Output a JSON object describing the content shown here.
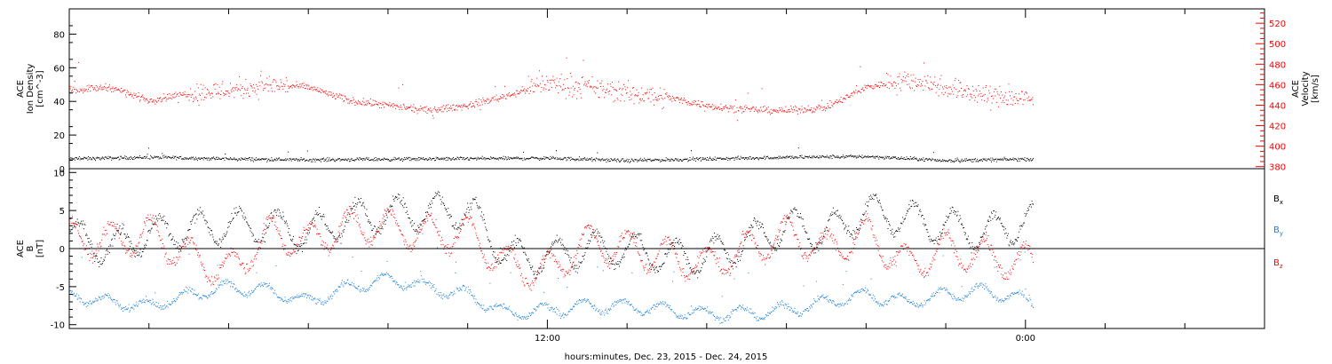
{
  "chart_data": [
    {
      "type": "scatter",
      "name": "density-velocity-panel",
      "ylabel_left": [
        "ACE",
        "Ion Density",
        "[cm^-3]"
      ],
      "ylabel_right": [
        "ACE",
        "Velocity",
        "[km/s]"
      ],
      "ylim_left": [
        0,
        95
      ],
      "ylim_right": [
        378,
        534
      ],
      "yticks_left": [
        0,
        20,
        40,
        60,
        80
      ],
      "yticks_right": [
        380,
        400,
        420,
        440,
        460,
        480,
        500,
        520
      ],
      "x_range_hours": [
        0,
        30
      ],
      "data_end_hours": 24.2,
      "series": [
        {
          "name": "Ion Density",
          "color": "#000000",
          "axis": "left",
          "profile": [
            [
              0,
              6
            ],
            [
              2,
              7
            ],
            [
              4,
              6
            ],
            [
              6,
              5.5
            ],
            [
              9,
              6
            ],
            [
              12,
              6.5
            ],
            [
              14,
              5
            ],
            [
              16,
              6
            ],
            [
              18,
              7
            ],
            [
              20,
              7.5
            ],
            [
              22,
              5
            ],
            [
              24.2,
              6
            ]
          ]
        },
        {
          "name": "Velocity",
          "color": "#ff0000",
          "axis": "right",
          "profile": [
            [
              0,
              455
            ],
            [
              1,
              458
            ],
            [
              2,
              445
            ],
            [
              3,
              452
            ],
            [
              4,
              455
            ],
            [
              5,
              460
            ],
            [
              6,
              458
            ],
            [
              7,
              445
            ],
            [
              8,
              440
            ],
            [
              9,
              435
            ],
            [
              10,
              440
            ],
            [
              11,
              450
            ],
            [
              12,
              462
            ],
            [
              13,
              458
            ],
            [
              14,
              452
            ],
            [
              15,
              448
            ],
            [
              16,
              440
            ],
            [
              17,
              436
            ],
            [
              18,
              435
            ],
            [
              19,
              438
            ],
            [
              20,
              458
            ],
            [
              21,
              465
            ],
            [
              22,
              458
            ],
            [
              23,
              450
            ],
            [
              24.2,
              445
            ]
          ]
        }
      ]
    },
    {
      "type": "scatter",
      "name": "magnetic-field-panel",
      "ylabel_left": [
        "ACE",
        "B",
        "[nT]"
      ],
      "ylim": [
        -10.5,
        10.5
      ],
      "yticks": [
        -10,
        -5,
        0,
        5,
        10
      ],
      "x_range_hours": [
        0,
        30
      ],
      "data_end_hours": 24.2,
      "series": [
        {
          "name": "Bx",
          "color": "#000000",
          "profile": [
            [
              0,
              2
            ],
            [
              1,
              0
            ],
            [
              2,
              2
            ],
            [
              3,
              2.5
            ],
            [
              4,
              3
            ],
            [
              5,
              3
            ],
            [
              6,
              2
            ],
            [
              7,
              4
            ],
            [
              8,
              4.5
            ],
            [
              9,
              5
            ],
            [
              10,
              5
            ],
            [
              11,
              -1
            ],
            [
              12,
              -1
            ],
            [
              13,
              0
            ],
            [
              14,
              0
            ],
            [
              15,
              -1
            ],
            [
              16,
              -1
            ],
            [
              17,
              1
            ],
            [
              18,
              3
            ],
            [
              19,
              2
            ],
            [
              20,
              5
            ],
            [
              21,
              4
            ],
            [
              22,
              3
            ],
            [
              23,
              2
            ],
            [
              24.2,
              4
            ]
          ]
        },
        {
          "name": "By",
          "color": "#1a7fd6",
          "profile": [
            [
              0,
              -6
            ],
            [
              1,
              -7
            ],
            [
              2,
              -7.5
            ],
            [
              3,
              -6
            ],
            [
              4,
              -5
            ],
            [
              5,
              -5.5
            ],
            [
              6,
              -7
            ],
            [
              7,
              -5
            ],
            [
              8,
              -4
            ],
            [
              9,
              -5
            ],
            [
              10,
              -6
            ],
            [
              11,
              -8.5
            ],
            [
              12,
              -8
            ],
            [
              13,
              -7.5
            ],
            [
              14,
              -7.5
            ],
            [
              15,
              -8
            ],
            [
              16,
              -8.5
            ],
            [
              17,
              -8.5
            ],
            [
              18,
              -8
            ],
            [
              19,
              -7
            ],
            [
              20,
              -6
            ],
            [
              21,
              -7
            ],
            [
              22,
              -6
            ],
            [
              23,
              -5.5
            ],
            [
              24.2,
              -7
            ]
          ]
        },
        {
          "name": "Bz",
          "color": "#ff0000",
          "profile": [
            [
              0,
              1.5
            ],
            [
              1,
              1
            ],
            [
              2,
              2
            ],
            [
              3,
              -1
            ],
            [
              4,
              -3
            ],
            [
              5,
              2
            ],
            [
              6,
              1
            ],
            [
              7,
              3
            ],
            [
              8,
              3
            ],
            [
              9,
              2
            ],
            [
              10,
              2
            ],
            [
              11,
              -2
            ],
            [
              12,
              -3
            ],
            [
              13,
              1
            ],
            [
              14,
              0
            ],
            [
              15,
              -1
            ],
            [
              16,
              -2
            ],
            [
              17,
              0
            ],
            [
              18,
              2
            ],
            [
              19,
              0
            ],
            [
              20,
              2
            ],
            [
              21,
              -2
            ],
            [
              22,
              0
            ],
            [
              23,
              -1
            ],
            [
              24.2,
              -2
            ]
          ]
        }
      ],
      "legend": [
        "B",
        "B",
        "B"
      ],
      "legend_subscripts": [
        "x",
        "y",
        "z"
      ],
      "legend_colors": [
        "#000000",
        "#1a7fd6",
        "#ff0000"
      ]
    }
  ],
  "x_axis": {
    "tick_labels": [
      {
        "hour": 12,
        "label": "12:00"
      },
      {
        "hour": 24,
        "label": "0:00"
      }
    ],
    "xlabel": "hours:minutes, Dec. 23, 2015 - Dec. 24, 2015"
  }
}
